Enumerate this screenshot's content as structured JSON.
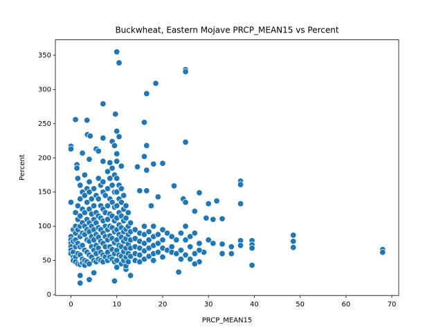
{
  "chart_data": {
    "type": "scatter",
    "title": "Buckwheat, Eastern Mojave PRCP_MEAN15 vs Percent",
    "x_label": "PRCP_MEAN15",
    "y_label": "Percent",
    "color": "#1f77b4",
    "xlim": [
      -3.4,
      71.5
    ],
    "ylim": [
      -1.2,
      372.6
    ],
    "xticks": [
      0,
      10,
      20,
      30,
      40,
      50,
      60,
      70
    ],
    "yticks": [
      0,
      50,
      100,
      150,
      200,
      250,
      300,
      350
    ],
    "grid": false,
    "x": [
      10,
      10.5,
      25,
      25,
      18.5,
      16.5,
      7,
      9.7,
      1,
      3.5,
      16,
      10,
      3.6,
      4.2,
      7,
      10.5,
      25,
      0,
      0,
      9,
      9.5,
      5.5,
      16.5,
      6,
      10,
      2.5,
      16,
      20,
      11,
      1.3,
      1.3,
      4,
      8.5,
      14.5,
      18,
      16.5,
      22.5,
      24.5,
      25,
      27,
      28,
      30,
      31.8,
      37,
      37,
      37,
      15,
      16.5,
      17.5,
      19,
      35,
      35,
      37,
      37,
      39.5,
      39.5,
      39.5,
      39.5,
      48.5,
      48.5,
      48.5,
      68,
      68,
      0,
      2,
      2,
      4,
      5,
      9.5,
      12,
      13,
      23.5,
      33,
      33,
      33,
      31,
      30,
      29,
      28,
      27,
      31,
      29.5,
      0,
      0,
      0,
      0,
      0,
      0,
      0.5,
      0.5,
      0.5,
      0.5,
      0.5,
      1,
      1,
      1,
      1,
      1,
      1,
      1,
      1.5,
      1.5,
      1.5,
      1.5,
      1.5,
      1.5,
      1.5,
      2,
      2,
      2,
      2,
      2,
      2,
      2,
      2,
      2.5,
      2.5,
      2.5,
      2.5,
      2.5,
      2.5,
      2.5,
      3,
      3,
      3,
      3,
      3,
      3,
      3,
      3,
      3.5,
      3.5,
      3.5,
      3.5,
      3.5,
      3.5,
      3.5,
      4,
      4,
      4,
      4,
      4,
      4,
      4,
      4,
      4.5,
      4.5,
      4.5,
      4.5,
      4.5,
      4.5,
      5,
      5,
      5,
      5,
      5,
      5,
      5,
      5.5,
      5.5,
      5.5,
      5.5,
      5.5,
      5.5,
      5.5,
      6,
      6,
      6,
      6,
      6,
      6,
      6,
      6.5,
      6.5,
      6.5,
      6.5,
      6.5,
      6.5,
      6.5,
      7,
      7,
      7,
      7,
      7,
      7,
      7,
      7,
      7,
      7.5,
      7.5,
      7.5,
      7.5,
      7.5,
      7.5,
      8,
      8,
      8,
      8,
      8,
      8,
      8,
      8,
      8.5,
      8.5,
      8.5,
      8.5,
      8.5,
      8.5,
      8.5,
      9,
      9,
      9,
      9,
      9,
      9,
      9,
      9,
      9.5,
      9.5,
      9.5,
      9.5,
      9.5,
      9.5,
      9.5,
      9.5,
      10,
      10,
      10,
      10,
      10,
      10,
      10,
      10,
      10,
      10,
      10.5,
      10.5,
      10.5,
      10.5,
      10.5,
      10.5,
      10.5,
      11,
      11,
      11,
      11,
      11,
      11,
      11,
      11,
      11.5,
      11.5,
      11.5,
      11.5,
      11.5,
      11.5,
      11.5,
      12,
      12,
      12,
      12,
      12,
      12,
      12,
      12.5,
      12.5,
      12.5,
      12.5,
      12.5,
      12.5,
      13,
      13,
      13,
      13,
      13,
      14,
      14,
      14,
      14,
      14,
      15,
      15,
      15,
      15,
      15,
      16,
      16,
      16,
      16,
      16,
      17,
      17,
      17,
      17,
      18,
      18,
      18,
      18,
      18,
      19,
      19,
      19,
      20,
      20,
      20,
      20,
      21,
      21,
      22,
      22,
      22,
      23,
      23,
      24,
      24,
      24,
      25,
      25,
      25,
      26,
      26,
      26,
      27,
      27,
      28,
      28
    ],
    "values": [
      355,
      339,
      329,
      326,
      309,
      294,
      279,
      264,
      256,
      255,
      252,
      239,
      234,
      232,
      229,
      231,
      223,
      217,
      213,
      224,
      218,
      213,
      218,
      210,
      206,
      207,
      202,
      192,
      188,
      190,
      185,
      198,
      193,
      187,
      191,
      182,
      159,
      140,
      135,
      122,
      149,
      133,
      137,
      166,
      161,
      133,
      152,
      152,
      130,
      143,
      70,
      60,
      79,
      72,
      79,
      73,
      68,
      43,
      87,
      78,
      69,
      66,
      62,
      135,
      17,
      28,
      22,
      32,
      20,
      37,
      28,
      33,
      111,
      74,
      60,
      75,
      80,
      62,
      48,
      45,
      110,
      112,
      85,
      80,
      75,
      70,
      65,
      60,
      95,
      78,
      62,
      55,
      50,
      120,
      100,
      90,
      80,
      70,
      55,
      48,
      170,
      130,
      110,
      95,
      75,
      60,
      45,
      160,
      140,
      115,
      100,
      85,
      70,
      58,
      44,
      150,
      125,
      105,
      90,
      72,
      52,
      46,
      175,
      145,
      120,
      100,
      88,
      65,
      50,
      43,
      155,
      135,
      110,
      95,
      80,
      62,
      48,
      165,
      150,
      125,
      105,
      92,
      78,
      58,
      45,
      140,
      118,
      100,
      85,
      70,
      55,
      155,
      130,
      110,
      95,
      80,
      65,
      50,
      145,
      120,
      105,
      88,
      72,
      60,
      48,
      170,
      140,
      115,
      98,
      84,
      68,
      52,
      160,
      130,
      112,
      95,
      78,
      62,
      50,
      195,
      165,
      150,
      125,
      108,
      90,
      75,
      58,
      48,
      145,
      120,
      100,
      85,
      70,
      55,
      180,
      155,
      130,
      110,
      95,
      80,
      62,
      50,
      170,
      140,
      118,
      100,
      86,
      70,
      55,
      185,
      160,
      135,
      115,
      98,
      82,
      66,
      52,
      175,
      150,
      128,
      108,
      92,
      76,
      60,
      48,
      195,
      170,
      150,
      130,
      112,
      95,
      80,
      65,
      50,
      40,
      160,
      140,
      120,
      102,
      88,
      72,
      58,
      155,
      135,
      115,
      98,
      84,
      70,
      56,
      45,
      145,
      125,
      108,
      92,
      78,
      63,
      50,
      130,
      112,
      96,
      82,
      68,
      55,
      42,
      120,
      100,
      88,
      74,
      60,
      48,
      105,
      92,
      80,
      68,
      56,
      95,
      82,
      70,
      60,
      50,
      90,
      78,
      68,
      58,
      48,
      100,
      88,
      75,
      64,
      52,
      92,
      80,
      68,
      56,
      100,
      85,
      72,
      60,
      50,
      88,
      75,
      62,
      95,
      80,
      68,
      55,
      90,
      65,
      85,
      70,
      62,
      80,
      60,
      90,
      65,
      52,
      100,
      80,
      58,
      85,
      70,
      52,
      90,
      60,
      75,
      65
    ]
  }
}
